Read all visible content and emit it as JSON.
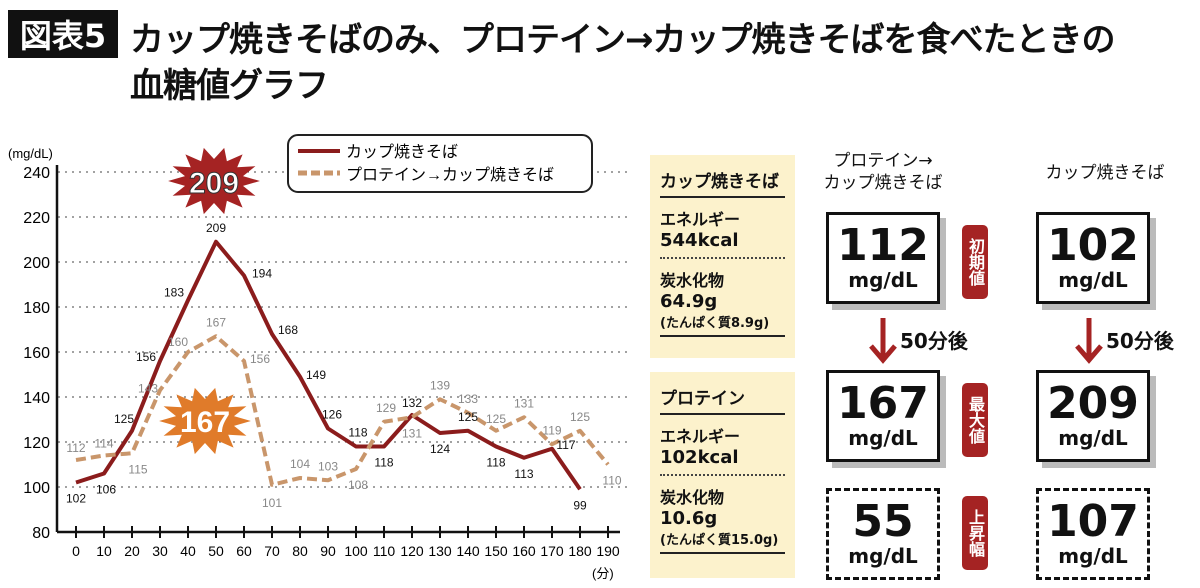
{
  "header": {
    "tag": "図表5",
    "title_line1": "カップ焼きそばのみ、プロテイン→カップ焼きそばを食べたときの",
    "title_line2": "血糖値グラフ"
  },
  "chart_data": {
    "type": "line",
    "ylabel": "(mg/dL)",
    "xlabel": "(分)",
    "ylim": [
      80,
      240
    ],
    "yticks": [
      80,
      100,
      120,
      140,
      160,
      180,
      200,
      220,
      240
    ],
    "xlim": [
      0,
      190
    ],
    "xticks": [
      0,
      10,
      20,
      30,
      40,
      50,
      60,
      70,
      80,
      90,
      100,
      110,
      120,
      130,
      140,
      150,
      160,
      170,
      180,
      190
    ],
    "grid": "horizontal dotted",
    "legend_position": "top-center",
    "series": [
      {
        "name": "カップ焼きそば",
        "color": "#8b1c1c",
        "style": "solid",
        "x": [
          0,
          10,
          20,
          30,
          40,
          50,
          60,
          70,
          80,
          90,
          100,
          110,
          120,
          130,
          140,
          150,
          160,
          170,
          180
        ],
        "values": [
          102,
          106,
          125,
          156,
          183,
          209,
          194,
          168,
          149,
          126,
          118,
          118,
          132,
          124,
          125,
          118,
          113,
          117,
          99
        ]
      },
      {
        "name": "プロテイン→カップ焼きそば",
        "color": "#c9966b",
        "style": "dashed",
        "x": [
          0,
          10,
          20,
          30,
          40,
          50,
          60,
          70,
          80,
          90,
          100,
          110,
          120,
          130,
          140,
          150,
          160,
          170,
          180,
          190
        ],
        "values": [
          112,
          114,
          115,
          143,
          160,
          167,
          156,
          101,
          104,
          103,
          108,
          129,
          131,
          139,
          133,
          125,
          131,
          119,
          125,
          110
        ]
      }
    ],
    "annotations": [
      {
        "text": "209",
        "color": "#a52323"
      },
      {
        "text": "167",
        "color": "#e07b2a"
      }
    ]
  },
  "info": [
    {
      "name": "カップ焼きそば",
      "energy_label": "エネルギー",
      "energy": "544kcal",
      "carb_label": "炭水化物",
      "carb": "64.9g",
      "protein": "(たんぱく質8.9g)"
    },
    {
      "name": "プロテイン",
      "energy_label": "エネルギー",
      "energy": "102kcal",
      "carb_label": "炭水化物",
      "carb": "10.6g",
      "protein": "(たんぱく質15.0g)"
    }
  ],
  "compare": {
    "col1": "プロテイン→\nカップ焼きそば",
    "col1_a": "プロテイン→",
    "col1_b": "カップ焼きそば",
    "col2": "カップ焼きそば",
    "unit": "mg/dL",
    "after": "50分後",
    "rows": [
      {
        "label": "初期値",
        "v1": "112",
        "v2": "102"
      },
      {
        "label": "最大値",
        "v1": "167",
        "v2": "209"
      },
      {
        "label": "上昇幅",
        "v1": "55",
        "v2": "107"
      }
    ],
    "arrow_color": "#a52323"
  }
}
